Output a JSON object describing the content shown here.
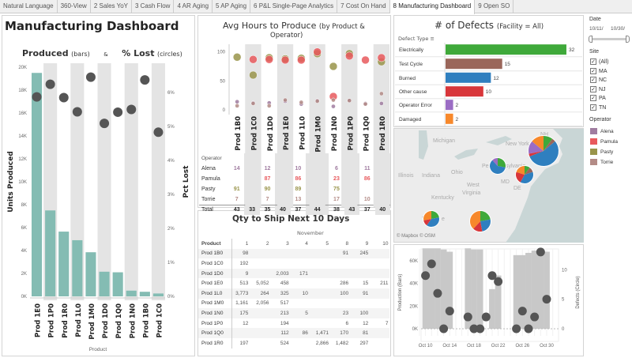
{
  "tabs": [
    "Natural Language",
    "360-View",
    "2 Sales YoY",
    "3 Cash Flow",
    "4 AR Aging",
    "5 AP Aging",
    "6 P&L Single-Page Analytics",
    "7 Cost On Hand",
    "8 Manufacturing Dashboard",
    "9 Open SO"
  ],
  "active_tab": "8 Manufacturing Dashboard",
  "dashboard_title": "Manufacturing Dashboard",
  "colors": {
    "teal_bar": "#84bcb3",
    "circle": "#555555",
    "alena": "#a07ca0",
    "pamula": "#e8595d",
    "pasty": "#99944a",
    "torrie": "#b38b86",
    "stripe": "#e4e4e4"
  },
  "produced_chart": {
    "title_a": "Produced",
    "title_a_sub": "(bars)",
    "amp": "&",
    "title_b": "% Lost",
    "title_b_sub": "(circles)",
    "chart_data": {
      "type": "bar+scatter",
      "categories": [
        "Prod 1E0",
        "Prod 1P0",
        "Prod 1R0",
        "Prod 1L0",
        "Prod 1M0",
        "Prod 1D0",
        "Prod 1Q0",
        "Prod 1N0",
        "Prod 1B0",
        "Prod 1C0"
      ],
      "units_produced": [
        19500,
        7500,
        5650,
        4900,
        3850,
        2150,
        2100,
        500,
        400,
        250
      ],
      "pct_lost": [
        5.87,
        6.24,
        5.85,
        5.43,
        6.45,
        5.09,
        5.42,
        5.5,
        6.37,
        4.83
      ],
      "ylabel": "Units Produced",
      "y2label": "Pct Lost",
      "xlabel": "Product",
      "ylim": [
        0,
        20000
      ],
      "y2lim": [
        0,
        6.8
      ],
      "yticks": [
        "0K",
        "2K",
        "4K",
        "6K",
        "8K",
        "10K",
        "12K",
        "14K",
        "16K",
        "18K",
        "20K"
      ],
      "y2ticks": [
        "0%",
        "1%",
        "2%",
        "3%",
        "4%",
        "5%",
        "6%"
      ]
    }
  },
  "avg_hours": {
    "title": "Avg Hours to Produce",
    "title_sub": "(by Product &",
    "title_sub2": "Operator)",
    "chart_data": {
      "type": "scatter",
      "categories": [
        "Prod 1B0",
        "Prod 1C0",
        "Prod 1D0",
        "Prod 1E0",
        "Prod 1L0",
        "Prod 1M0",
        "Prod 1N0",
        "Prod 1P0",
        "Prod 1Q0",
        "Prod 1R0"
      ],
      "yticks": [
        "0",
        "50",
        "100"
      ],
      "ylim": [
        0,
        115
      ],
      "series": [
        {
          "name": "Alena",
          "values": [
            14,
            12,
            12,
            15,
            10,
            16,
            6,
            16,
            11,
            11
          ]
        },
        {
          "name": "Pamula",
          "values": [
            null,
            87,
            87,
            86,
            86,
            100,
            23,
            93,
            86,
            90
          ]
        },
        {
          "name": "Pasty",
          "values": [
            91,
            60,
            90,
            88,
            89,
            97,
            75,
            97,
            null,
            83
          ]
        },
        {
          "name": "Torrie",
          "values": [
            7,
            11,
            7,
            17,
            13,
            15,
            17,
            16,
            10,
            28
          ]
        }
      ],
      "totals": [
        43,
        33,
        35,
        40,
        37,
        44,
        38,
        43,
        37,
        40
      ]
    },
    "operator_header": "Operator",
    "total_label": "Total"
  },
  "qty_ship": {
    "title": "Qty to Ship Next 10 Days",
    "month": "November",
    "product_header": "Product",
    "days": [
      "1",
      "2",
      "3",
      "4",
      "5",
      "8",
      "9",
      "10"
    ],
    "rows": [
      {
        "product": "Prod 1B0",
        "values": [
          "98",
          "",
          "",
          "",
          "",
          "91",
          "245",
          ""
        ]
      },
      {
        "product": "Prod 1C0",
        "values": [
          "192",
          "",
          "",
          "",
          "",
          "",
          "",
          ""
        ]
      },
      {
        "product": "Prod 1D0",
        "values": [
          "9",
          "",
          "2,003",
          "171",
          "",
          "",
          "",
          ""
        ]
      },
      {
        "product": "Prod 1E0",
        "values": [
          "513",
          "5,052",
          "458",
          "",
          "",
          "286",
          "15",
          "211"
        ]
      },
      {
        "product": "Prod 1L0",
        "values": [
          "3,773",
          "264",
          "325",
          "10",
          "",
          "100",
          "91",
          ""
        ]
      },
      {
        "product": "Prod 1M0",
        "values": [
          "1,161",
          "2,056",
          "517",
          "",
          "",
          "",
          "",
          ""
        ]
      },
      {
        "product": "Prod 1N0",
        "values": [
          "175",
          "",
          "213",
          "5",
          "",
          "23",
          "100",
          ""
        ]
      },
      {
        "product": "Prod 1P0",
        "values": [
          "12",
          "",
          "194",
          "",
          "",
          "6",
          "12",
          "7"
        ]
      },
      {
        "product": "Prod 1Q0",
        "values": [
          "",
          "",
          "112",
          "86",
          "1,471",
          "170",
          "81",
          ""
        ]
      },
      {
        "product": "Prod 1R0",
        "values": [
          "197",
          "",
          "524",
          "",
          "2,866",
          "1,482",
          "297",
          ""
        ]
      }
    ]
  },
  "defects": {
    "title": "# of Defects",
    "title_sub": "(Facility = All)",
    "type_header": "Defect Type",
    "chart_data": {
      "type": "bar",
      "categories": [
        "Electrically",
        "Test Cycle",
        "Burned",
        "Other cause",
        "Operator Error",
        "Damaged"
      ],
      "values": [
        32,
        15,
        12,
        10,
        2,
        2
      ],
      "colors": [
        "#3fa93a",
        "#9a665a",
        "#2f7fbf",
        "#d8363a",
        "#9b6dc4",
        "#f7882b"
      ]
    }
  },
  "map": {
    "labels": [
      "Michigan",
      "New York",
      "NH",
      "Illinois",
      "Indiana",
      "Ohio",
      "Penn",
      "sylvania",
      "MD",
      "DE",
      "West",
      "Virginia",
      "Kentucky",
      "Te",
      "e"
    ],
    "attribution": "© Mapbox © OSM",
    "pies": [
      {
        "site": "MA",
        "slices": [
          0.1,
          0.04,
          0.55,
          0.03,
          0.14,
          0.14
        ]
      },
      {
        "site": "NJ",
        "slices": [
          0.1,
          0.1,
          0.38,
          0.22,
          0,
          0.2
        ]
      },
      {
        "site": "PA",
        "slices": [
          0.28,
          0,
          0.6,
          0,
          0.12,
          0
        ]
      },
      {
        "site": "TN",
        "slices": [
          0.22,
          0,
          0.38,
          0.12,
          0,
          0.28
        ]
      },
      {
        "site": "NC",
        "slices": [
          0.22,
          0,
          0.25,
          0.15,
          0,
          0.38
        ]
      }
    ]
  },
  "production_defects": {
    "chart_data": {
      "type": "bar+scatter",
      "x": [
        "Oct 10",
        "Oct 11",
        "Oct 12",
        "Oct 13",
        "Oct 14",
        "Oct 17",
        "Oct 18",
        "Oct 19",
        "Oct 20",
        "Oct 21",
        "Oct 22",
        "Oct 25",
        "Oct 26",
        "Oct 27",
        "Oct 28",
        "Oct 29",
        "Oct 30"
      ],
      "production": [
        71000,
        71000,
        71000,
        70000,
        68000,
        71000,
        70000,
        70000,
        0,
        35000,
        47000,
        65000,
        65000,
        67000,
        69000,
        69000,
        68000
      ],
      "defects": [
        9,
        11,
        6,
        0,
        3,
        2,
        0,
        0,
        2,
        9,
        8,
        0,
        3,
        0,
        2,
        13,
        5
      ],
      "ylabel": "Production (Bars)",
      "y2label": "Defects (Circle)",
      "yticks": [
        "0K",
        "20K",
        "40K",
        "60K"
      ],
      "y2ticks": [
        "0",
        "5",
        "10"
      ],
      "xticks": [
        "Oct 10",
        "Oct 14",
        "Oct 18",
        "Oct 22",
        "Oct 26",
        "Oct 30"
      ]
    }
  },
  "filters": {
    "date_label": "Date",
    "date_start": "10/11/",
    "date_end": "10/30/",
    "site_label": "Site",
    "sites": [
      "(All)",
      "MA",
      "NC",
      "NJ",
      "PA",
      "TN"
    ],
    "operator_label": "Operator",
    "operators": [
      "Alena",
      "Pamula",
      "Pasty",
      "Torrie"
    ]
  }
}
